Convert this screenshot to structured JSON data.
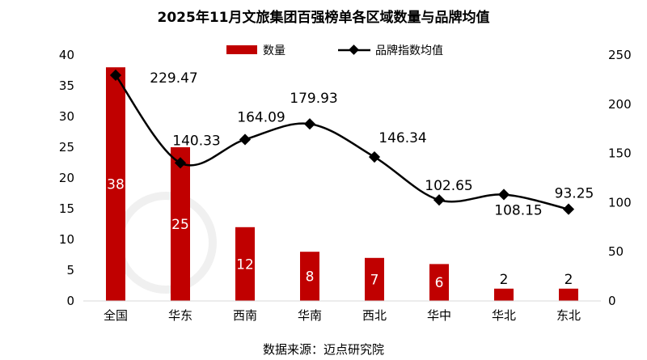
{
  "chart_data": {
    "type": "bar+line",
    "title": "2025年11月文旅集团百强榜单各区域数量与品牌均值",
    "categories": [
      "全国",
      "华东",
      "西南",
      "华南",
      "西北",
      "华中",
      "华北",
      "东北"
    ],
    "series": [
      {
        "name": "数量",
        "type": "bar",
        "axis": "left",
        "color": "#c00000",
        "values": [
          38,
          25,
          12,
          8,
          7,
          6,
          2,
          2
        ]
      },
      {
        "name": "品牌指数均值",
        "type": "line",
        "axis": "right",
        "color": "#000000",
        "values": [
          229.47,
          140.33,
          164.09,
          179.93,
          146.34,
          102.65,
          108.15,
          93.25
        ]
      }
    ],
    "left_axis": {
      "min": 0,
      "max": 40,
      "step": 5,
      "ticks": [
        "0",
        "5",
        "10",
        "15",
        "20",
        "25",
        "30",
        "35",
        "40"
      ]
    },
    "right_axis": {
      "min": 0,
      "max": 250,
      "step": 50,
      "ticks": [
        "0",
        "50",
        "100",
        "150",
        "200",
        "250"
      ]
    },
    "legend_position": "top",
    "grid": false,
    "source": "数据来源：迈点研究院",
    "watermark": "迈点研究院"
  }
}
